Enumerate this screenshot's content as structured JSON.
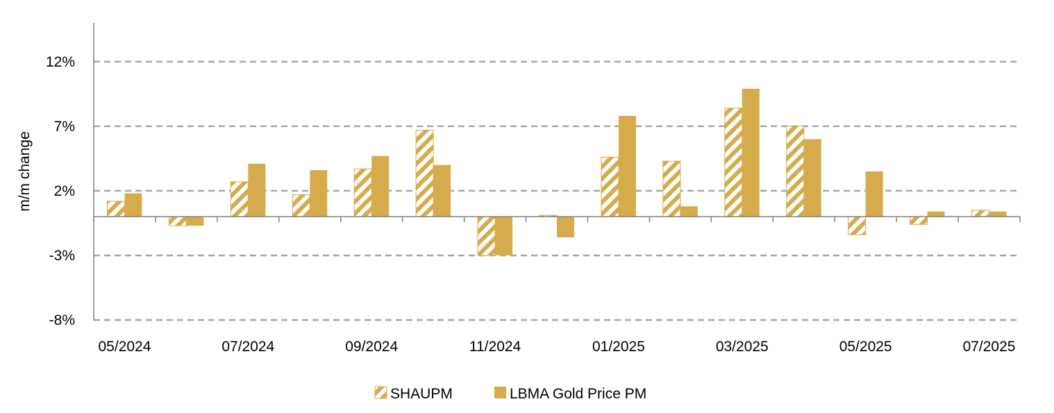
{
  "chart_data": {
    "type": "bar",
    "title": "",
    "xlabel": "",
    "ylabel": "m/m change",
    "categories": [
      "05/2024",
      "06/2024",
      "07/2024",
      "08/2024",
      "09/2024",
      "10/2024",
      "11/2024",
      "12/2024",
      "01/2025",
      "02/2025",
      "03/2025",
      "04/2025",
      "05/2025",
      "06/2025",
      "07/2025"
    ],
    "x_tick_labels": [
      "05/2024",
      "",
      "07/2024",
      "",
      "09/2024",
      "",
      "11/2024",
      "",
      "01/2025",
      "",
      "03/2025",
      "",
      "05/2025",
      "",
      "07/2025"
    ],
    "y_ticks": [
      12,
      7,
      2,
      -3,
      -8
    ],
    "y_tick_labels": [
      "12%",
      "7%",
      "2%",
      "-3%",
      "-8%"
    ],
    "ylim": [
      -8,
      15
    ],
    "grid": "horizontal dashed",
    "legend_position": "bottom",
    "series": [
      {
        "name": "SHAUPM",
        "style": "hatched",
        "values": [
          1.2,
          -0.7,
          2.7,
          1.7,
          3.7,
          6.7,
          -3.0,
          0.1,
          4.6,
          4.3,
          8.4,
          7.0,
          -1.4,
          -0.6,
          0.5
        ]
      },
      {
        "name": "LBMA Gold Price PM",
        "style": "solid",
        "values": [
          1.8,
          -0.7,
          4.1,
          3.6,
          4.7,
          4.0,
          -3.0,
          -1.6,
          7.8,
          0.8,
          9.9,
          6.0,
          3.5,
          0.4,
          0.4
        ]
      }
    ],
    "colors": {
      "bar": "#D6AB4C",
      "grid": "#A6A6A6",
      "axis": "#808080"
    }
  }
}
